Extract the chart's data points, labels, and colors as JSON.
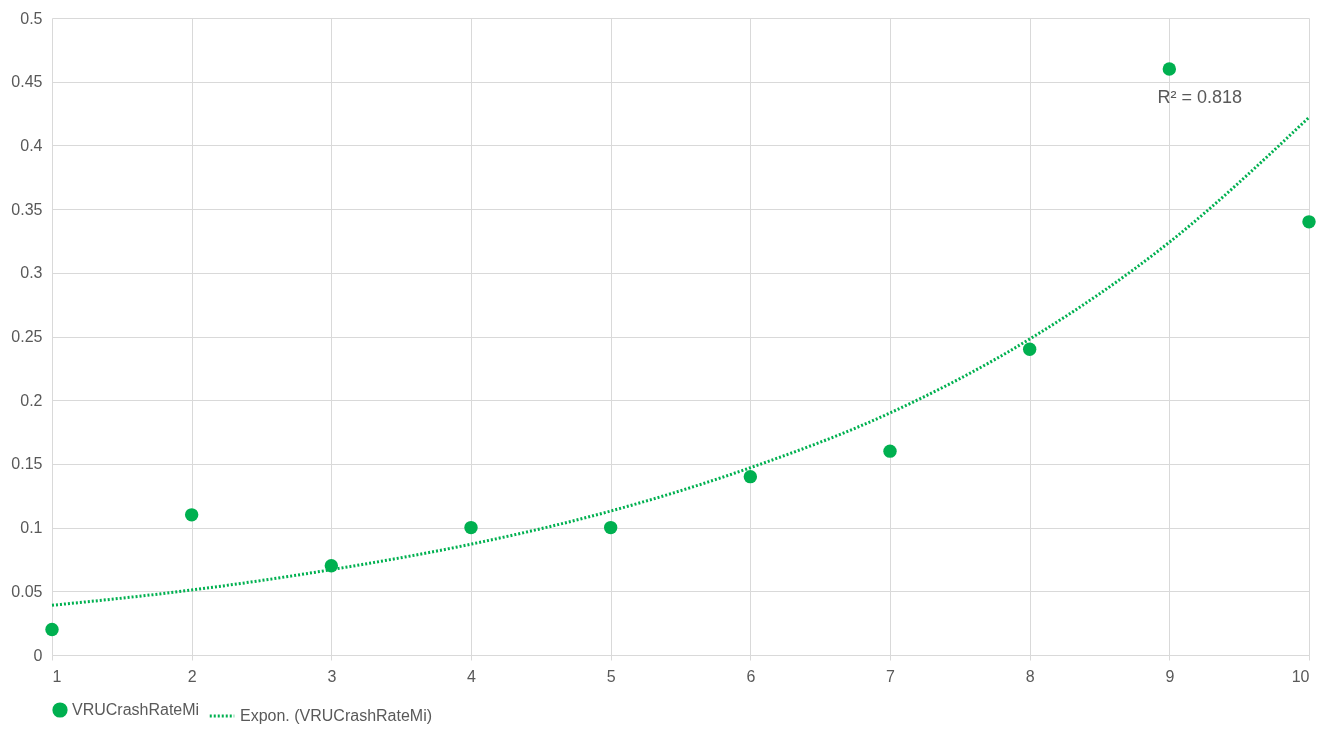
{
  "chart_data": {
    "type": "scatter",
    "x": [
      1,
      2,
      3,
      4,
      5,
      6,
      7,
      8,
      9,
      10
    ],
    "series": [
      {
        "name": "VRUCrashRateMi",
        "color": "#00b050",
        "marker": "circle",
        "values": [
          0.02,
          0.11,
          0.07,
          0.1,
          0.1,
          0.14,
          0.16,
          0.24,
          0.46,
          0.34
        ]
      },
      {
        "name": "Expon. (VRUCrashRateMi)",
        "type": "line",
        "color": "#00b050",
        "line_style": "dotted",
        "x": [
          1,
          2,
          3,
          4,
          5,
          6,
          7,
          8,
          9,
          10
        ],
        "values": [
          0.039,
          0.051,
          0.067,
          0.087,
          0.113,
          0.147,
          0.19,
          0.248,
          0.324,
          0.422
        ]
      }
    ],
    "xlim": [
      1,
      10
    ],
    "xticks": [
      1,
      2,
      3,
      4,
      5,
      6,
      7,
      8,
      9,
      10
    ],
    "ylim": [
      0,
      0.5
    ],
    "yticks": [
      0,
      0.05,
      0.1,
      0.15,
      0.2,
      0.25,
      0.3,
      0.35,
      0.4,
      0.45,
      0.5
    ],
    "grid": true,
    "legend": "bottom",
    "annotations": [
      "R² = 0.818"
    ]
  }
}
